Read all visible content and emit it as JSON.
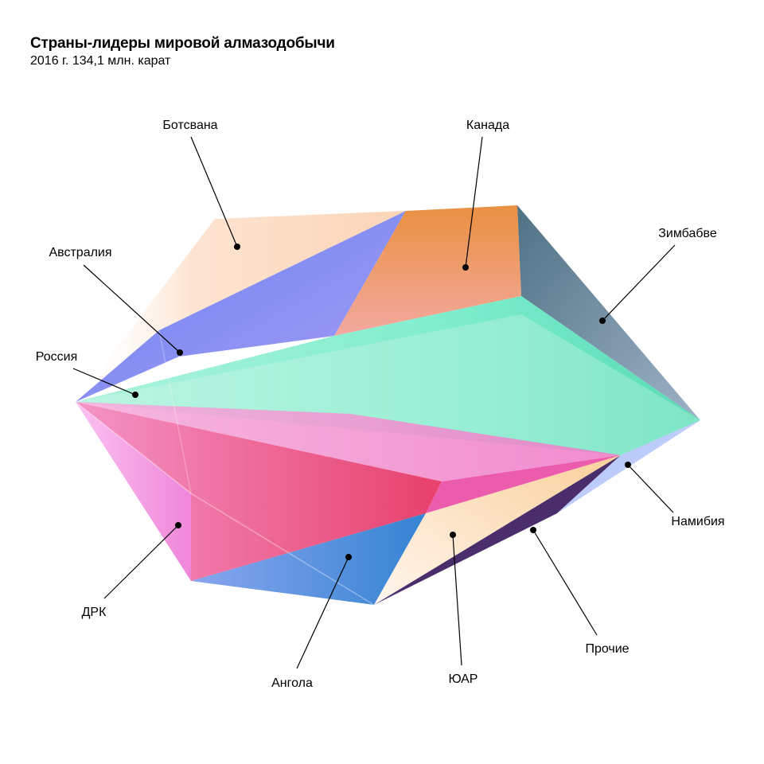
{
  "header": {
    "title": "Страны-лидеры мировой алмазодобычи",
    "subtitle": "2016 г. 134,1 млн. карат"
  },
  "labels": {
    "botswana": "Ботсвана",
    "canada": "Канада",
    "zimbabwe": "Зимбабве",
    "australia": "Австралия",
    "russia": "Россия",
    "drc": "ДРК",
    "angola": "Ангола",
    "south_africa": "ЮАР",
    "other": "Прочие",
    "namibia": "Намибия"
  },
  "colors": {
    "botswana": "#fcd9bd",
    "canada": "#ee9a5c",
    "zimbabwe": "#5e8196",
    "australia": "#6a6ff0",
    "russia": "#70ecc8",
    "drc": "#f48ae8",
    "angola": "#3a8ad6",
    "south_africa": "#fde0b8",
    "other": "#3a1c5e",
    "namibia": "#b6c8f8",
    "core": "#e8366a"
  }
}
